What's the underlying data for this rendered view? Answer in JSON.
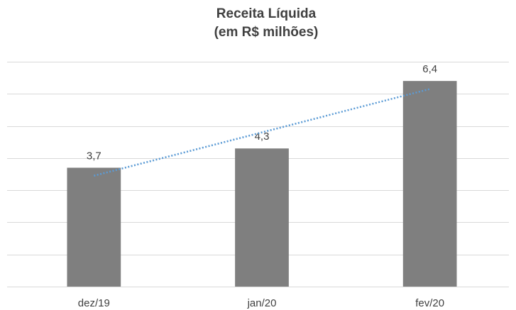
{
  "chart_data": {
    "type": "bar",
    "title": "Receita Líquida",
    "subtitle": "(em R$ milhões)",
    "categories": [
      "dez/19",
      "jan/20",
      "fev/20"
    ],
    "values": [
      3.7,
      4.3,
      6.4
    ],
    "value_labels": [
      "3,7",
      "4,3",
      "6,4"
    ],
    "color": "#7f7f7f",
    "ylim": [
      0,
      7
    ],
    "yticks": [
      0,
      1,
      2,
      3,
      4,
      5,
      6,
      7
    ],
    "grid": true,
    "trendline": true,
    "trendline_color": "#5b9bd5"
  }
}
